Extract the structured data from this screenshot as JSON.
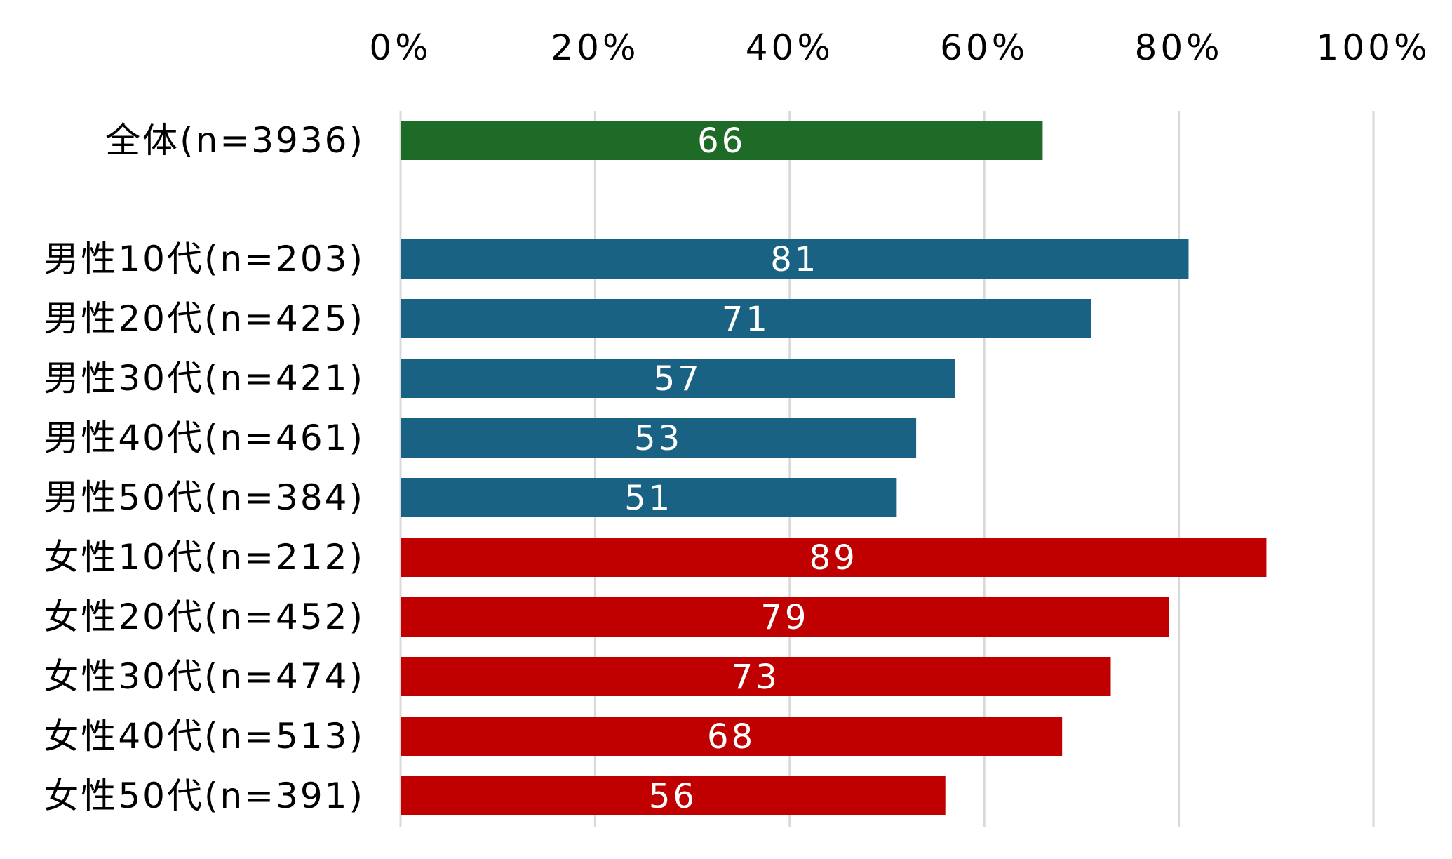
{
  "chart_data": {
    "type": "bar",
    "orientation": "horizontal",
    "xlim": [
      0,
      100
    ],
    "x_ticks": [
      "0%",
      "20%",
      "40%",
      "60%",
      "80%",
      "100%"
    ],
    "x_tick_values": [
      0,
      20,
      40,
      60,
      80,
      100
    ],
    "grid": true,
    "categories": [
      "全体(n=3936)",
      "男性10代(n=203)",
      "男性20代(n=425)",
      "男性30代(n=421)",
      "男性40代(n=461)",
      "男性50代(n=384)",
      "女性10代(n=212)",
      "女性20代(n=452)",
      "女性30代(n=474)",
      "女性40代(n=513)",
      "女性50代(n=391)"
    ],
    "values": [
      66,
      81,
      71,
      57,
      53,
      51,
      89,
      79,
      73,
      68,
      56
    ],
    "data_labels": [
      "66",
      "81",
      "71",
      "57",
      "53",
      "51",
      "89",
      "79",
      "73",
      "68",
      "56"
    ],
    "bar_colors": [
      "#1e6b28",
      "#1a6283",
      "#1a6283",
      "#1a6283",
      "#1a6283",
      "#1a6283",
      "#c00000",
      "#c00000",
      "#c00000",
      "#c00000",
      "#c00000"
    ]
  }
}
